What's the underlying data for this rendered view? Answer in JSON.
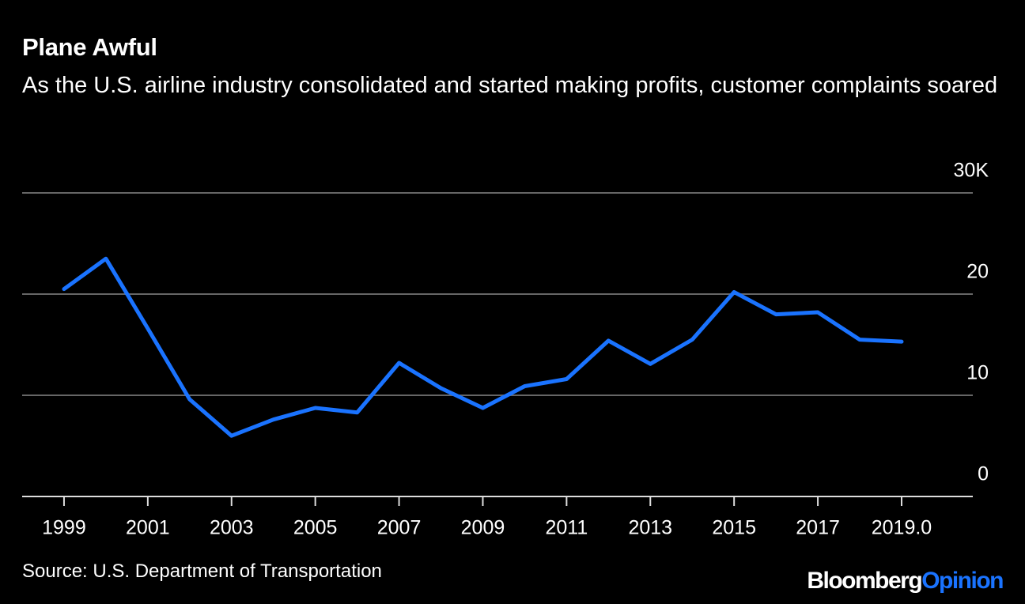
{
  "chart_data": {
    "type": "line",
    "title": "Plane Awful",
    "subtitle": "As the U.S. airline industry consolidated and started making profits, customer complaints soared",
    "source": "Source: U.S. Department of Transportation",
    "brand": {
      "name": "Bloomberg",
      "section": "Opinion"
    },
    "x": [
      1999,
      2000,
      2001,
      2002,
      2003,
      2004,
      2005,
      2006,
      2007,
      2008,
      2009,
      2010,
      2011,
      2012,
      2013,
      2014,
      2015,
      2016,
      2017,
      2018,
      2019
    ],
    "values": [
      20.5,
      23.5,
      16.6,
      9.6,
      6.0,
      7.6,
      8.75,
      8.3,
      13.2,
      10.7,
      8.75,
      10.9,
      11.6,
      15.4,
      13.1,
      15.5,
      20.2,
      18.0,
      18.2,
      15.5,
      15.3
    ],
    "color": "#1a73ff",
    "xlim": [
      1998,
      2020.7
    ],
    "xticks": [
      1999,
      2001,
      2003,
      2005,
      2007,
      2009,
      2011,
      2013,
      2015,
      2017,
      {
        "value": 2019,
        "label": "2019.0"
      }
    ],
    "ylim": [
      0,
      30
    ],
    "yticks": [
      0,
      10,
      20,
      {
        "value": 30,
        "label": "30K"
      }
    ],
    "grid": true
  }
}
